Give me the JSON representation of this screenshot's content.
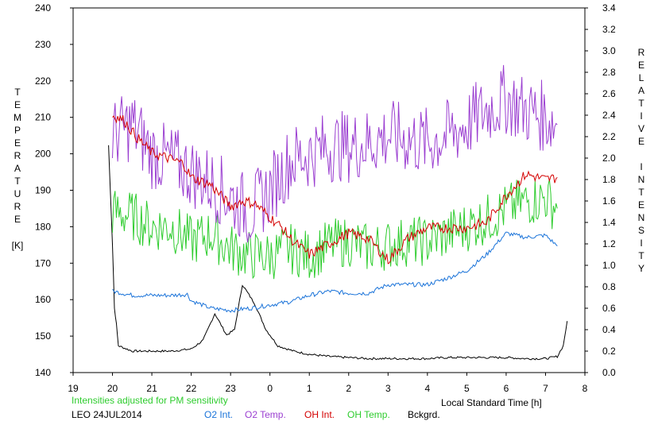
{
  "chart_data": {
    "type": "line",
    "x_axis": {
      "label": "Local Standard Time [h]",
      "ticks": [
        "19",
        "20",
        "21",
        "22",
        "23",
        "0",
        "1",
        "2",
        "3",
        "4",
        "5",
        "6",
        "7",
        "8"
      ],
      "range": [
        19,
        32
      ]
    },
    "y_left": {
      "label_letters": [
        "T",
        "E",
        "M",
        "P",
        "E",
        "R",
        "A",
        "T",
        "U",
        "R",
        "E"
      ],
      "unit": "[K]",
      "range": [
        140,
        240
      ],
      "ticks": [
        140,
        150,
        160,
        170,
        180,
        190,
        200,
        210,
        220,
        230,
        240
      ]
    },
    "y_right": {
      "label_letters_1": [
        "R",
        "E",
        "L",
        "A",
        "T",
        "I",
        "V",
        "E"
      ],
      "label_letters_2": [
        "I",
        "N",
        "T",
        "E",
        "N",
        "S",
        "I",
        "T",
        "Y"
      ],
      "range": [
        0,
        3.4
      ],
      "ticks": [
        "0.0",
        "0.2",
        "0.4",
        "0.6",
        "0.8",
        "1.0",
        "1.2",
        "1.4",
        "1.6",
        "1.8",
        "2.0",
        "2.2",
        "2.4",
        "2.6",
        "2.8",
        "3.0",
        "3.2",
        "3.4"
      ]
    },
    "note": "Intensities adjusted for PM sensitivity",
    "station": "LEO 24JUL2014",
    "series": [
      {
        "name": "O2 Int.",
        "color": "#1a73d9",
        "axis": "right",
        "x": [
          20.0,
          20.5,
          21.0,
          21.5,
          21.9,
          22.0,
          22.5,
          23.0,
          23.5,
          24.0,
          24.5,
          25.0,
          25.5,
          26.0,
          26.5,
          27.0,
          27.5,
          28.0,
          28.5,
          29.0,
          29.5,
          30.0,
          30.5,
          31.0,
          31.3
        ],
        "y": [
          0.76,
          0.72,
          0.72,
          0.72,
          0.73,
          0.67,
          0.6,
          0.58,
          0.6,
          0.63,
          0.66,
          0.72,
          0.76,
          0.74,
          0.74,
          0.82,
          0.82,
          0.82,
          0.88,
          0.95,
          1.1,
          1.3,
          1.26,
          1.28,
          1.18
        ]
      },
      {
        "name": "O2 Temp.",
        "color": "#9b3fd1",
        "axis": "left",
        "x": [
          20.0,
          20.5,
          21.0,
          21.5,
          22.0,
          22.5,
          23.0,
          23.5,
          24.0,
          24.5,
          25.0,
          25.5,
          26.0,
          26.5,
          27.0,
          27.5,
          28.0,
          28.5,
          29.0,
          29.5,
          30.0,
          30.5,
          31.0,
          31.3
        ],
        "y": [
          205,
          208,
          200,
          198,
          195,
          192,
          188,
          184,
          190,
          198,
          200,
          202,
          202,
          203,
          205,
          204,
          203,
          205,
          208,
          212,
          215,
          212,
          210,
          208
        ]
      },
      {
        "name": "OH Int.",
        "color": "#d40000",
        "axis": "right",
        "x": [
          20.0,
          20.3,
          20.6,
          21.0,
          21.4,
          21.8,
          22.0,
          22.5,
          23.0,
          23.3,
          23.6,
          24.0,
          24.3,
          24.6,
          25.0,
          25.5,
          26.0,
          26.5,
          27.0,
          27.5,
          28.0,
          28.5,
          29.0,
          29.5,
          30.0,
          30.5,
          31.0,
          31.3
        ],
        "y": [
          2.4,
          2.35,
          2.2,
          2.05,
          2.0,
          1.95,
          1.82,
          1.75,
          1.55,
          1.6,
          1.58,
          1.45,
          1.35,
          1.22,
          1.1,
          1.2,
          1.3,
          1.25,
          1.05,
          1.25,
          1.35,
          1.35,
          1.35,
          1.4,
          1.65,
          1.85,
          1.8,
          1.82
        ]
      },
      {
        "name": "OH Temp.",
        "color": "#2ecc2e",
        "axis": "left",
        "x": [
          20.0,
          20.5,
          21.0,
          21.5,
          22.0,
          22.5,
          23.0,
          23.5,
          24.0,
          24.5,
          25.0,
          25.5,
          26.0,
          26.5,
          27.0,
          27.5,
          28.0,
          28.5,
          29.0,
          29.5,
          30.0,
          30.5,
          31.0,
          31.3
        ],
        "y": [
          184,
          183,
          180,
          180,
          176,
          178,
          174,
          172,
          172,
          174,
          172,
          175,
          176,
          174,
          175,
          176,
          176,
          178,
          180,
          182,
          185,
          187,
          188,
          185
        ]
      },
      {
        "name": "Bckgrd.",
        "color": "#000000",
        "axis": "right",
        "x": [
          19.9,
          20.0,
          20.05,
          20.1,
          20.15,
          20.5,
          21.0,
          21.5,
          22.0,
          22.3,
          22.6,
          22.9,
          23.1,
          23.3,
          23.6,
          23.9,
          24.2,
          24.6,
          25.0,
          25.5,
          26.0,
          26.5,
          27.0,
          27.5,
          28.0,
          28.5,
          29.0,
          29.5,
          30.0,
          30.5,
          31.0,
          31.3,
          31.45,
          31.55
        ],
        "y": [
          2.12,
          1.2,
          0.6,
          0.45,
          0.25,
          0.2,
          0.2,
          0.2,
          0.22,
          0.3,
          0.55,
          0.35,
          0.4,
          0.82,
          0.65,
          0.4,
          0.25,
          0.2,
          0.17,
          0.15,
          0.14,
          0.13,
          0.13,
          0.13,
          0.13,
          0.14,
          0.14,
          0.14,
          0.14,
          0.13,
          0.13,
          0.15,
          0.25,
          0.48
        ]
      }
    ]
  }
}
